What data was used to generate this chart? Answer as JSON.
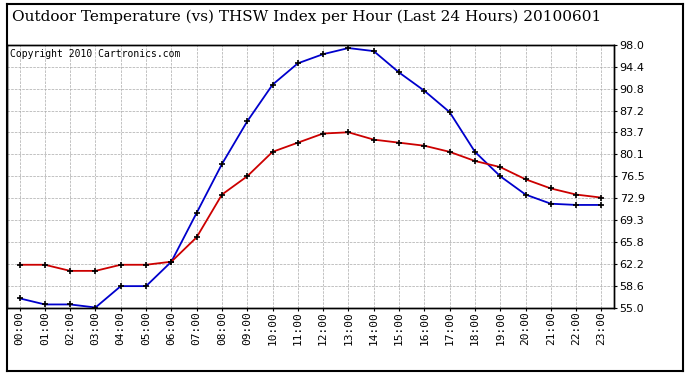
{
  "title": "Outdoor Temperature (vs) THSW Index per Hour (Last 24 Hours) 20100601",
  "copyright_text": "Copyright 2010 Cartronics.com",
  "hours": [
    "00:00",
    "01:00",
    "02:00",
    "03:00",
    "04:00",
    "05:00",
    "06:00",
    "07:00",
    "08:00",
    "09:00",
    "10:00",
    "11:00",
    "12:00",
    "13:00",
    "14:00",
    "15:00",
    "16:00",
    "17:00",
    "18:00",
    "19:00",
    "20:00",
    "21:00",
    "22:00",
    "23:00"
  ],
  "thsw_values": [
    56.5,
    55.5,
    55.5,
    55.0,
    58.5,
    58.5,
    62.5,
    70.5,
    78.5,
    85.5,
    91.5,
    95.0,
    96.5,
    97.5,
    97.0,
    93.5,
    90.5,
    87.0,
    80.5,
    76.5,
    73.5,
    72.0,
    71.8,
    71.8
  ],
  "temp_values": [
    62.0,
    62.0,
    61.0,
    61.0,
    62.0,
    62.0,
    62.5,
    66.5,
    73.5,
    76.5,
    80.5,
    82.0,
    83.5,
    83.7,
    82.5,
    82.0,
    81.5,
    80.5,
    79.0,
    78.0,
    76.0,
    74.5,
    73.5,
    73.0
  ],
  "thsw_color": "#0000CC",
  "temp_color": "#CC0000",
  "background_color": "#ffffff",
  "plot_bg_color": "#ffffff",
  "grid_color": "#aaaaaa",
  "ylim": [
    55.0,
    98.0
  ],
  "yticks": [
    55.0,
    58.6,
    62.2,
    65.8,
    69.3,
    72.9,
    76.5,
    80.1,
    83.7,
    87.2,
    90.8,
    94.4,
    98.0
  ],
  "ytick_labels": [
    "55.0",
    "58.6",
    "62.2",
    "65.8",
    "69.3",
    "72.9",
    "76.5",
    "80.1",
    "83.7",
    "87.2",
    "90.8",
    "94.4",
    "98.0"
  ],
  "title_fontsize": 11,
  "copyright_fontsize": 7,
  "tick_fontsize": 8
}
